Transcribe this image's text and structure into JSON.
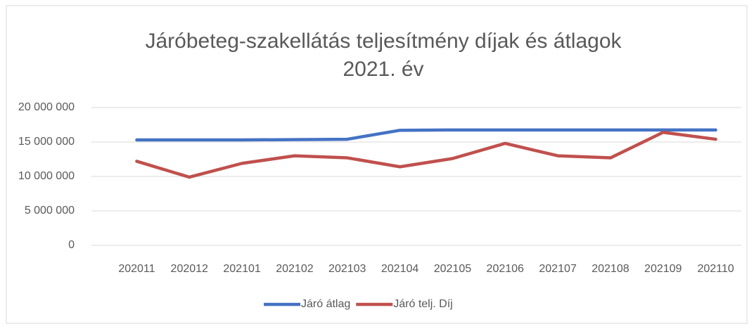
{
  "chart_data": {
    "type": "line",
    "title": [
      "Járóbeteg-szakellátás teljesítmény díjak és átlagok",
      "2021. év"
    ],
    "categories": [
      "202011",
      "202012",
      "202101",
      "202102",
      "202103",
      "202104",
      "202105",
      "202106",
      "202107",
      "202108",
      "202109",
      "202110"
    ],
    "series": [
      {
        "name": "Járó átlag",
        "color": "#4472c4",
        "values": [
          15300000,
          15300000,
          15300000,
          15350000,
          15400000,
          16700000,
          16750000,
          16750000,
          16750000,
          16750000,
          16750000,
          16750000
        ]
      },
      {
        "name": "Járó telj. Díj",
        "color": "#c0504d",
        "values": [
          12200000,
          9900000,
          11900000,
          13000000,
          12700000,
          11400000,
          12600000,
          14800000,
          13000000,
          12700000,
          16400000,
          15400000
        ]
      }
    ],
    "ylim": [
      0,
      20000000
    ],
    "yticks": [
      0,
      {
        "value": 5000000,
        "label": "5 000 000"
      },
      {
        "value": 10000000,
        "label": "10 000 000"
      },
      {
        "value": 15000000,
        "label": "15 000 000"
      },
      {
        "value": 20000000,
        "label": "20 000 000"
      }
    ],
    "grid": true,
    "legend": "bottom"
  }
}
